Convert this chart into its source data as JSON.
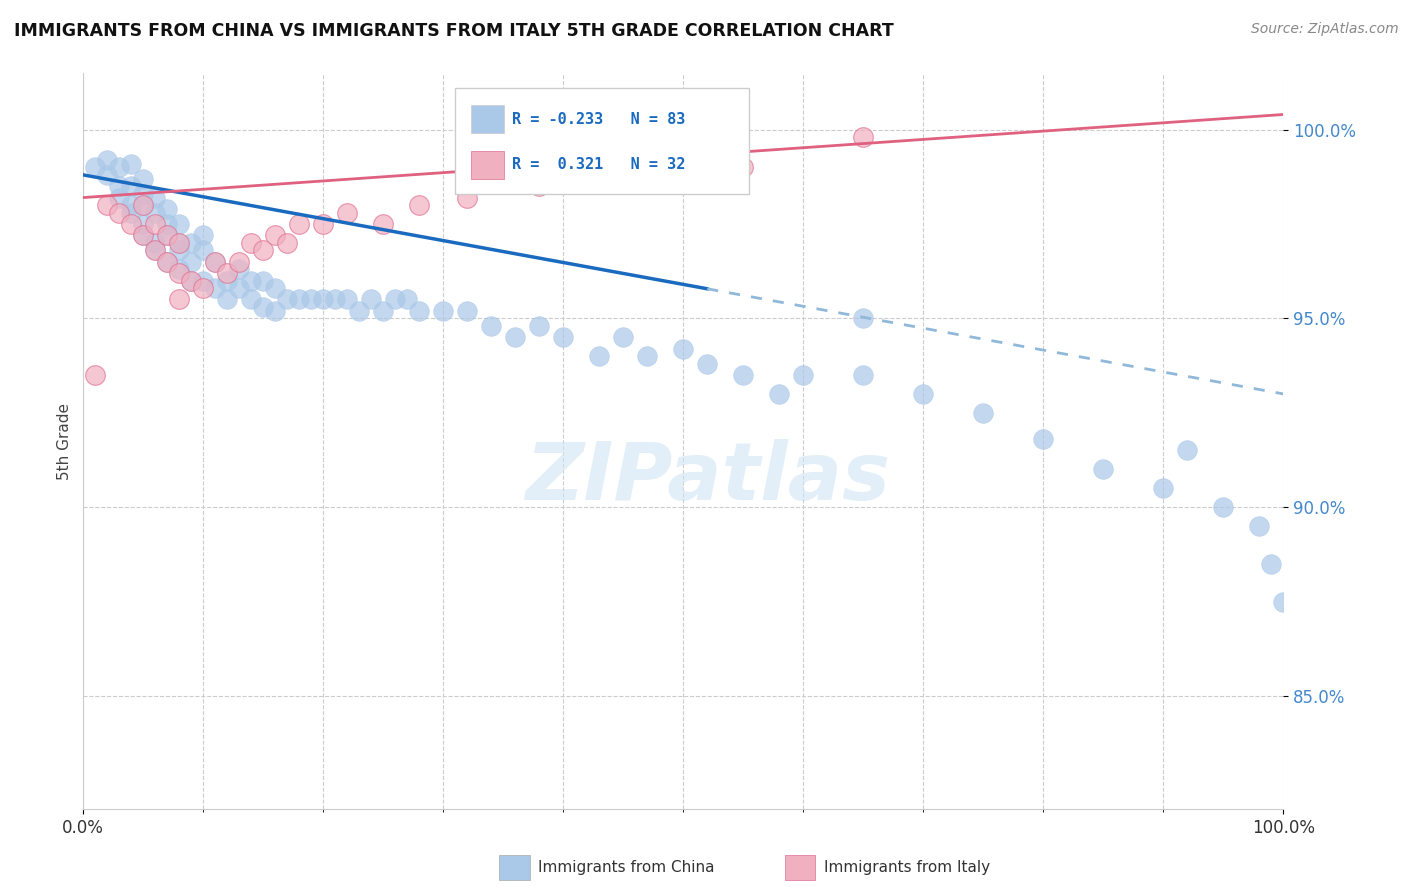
{
  "title": "IMMIGRANTS FROM CHINA VS IMMIGRANTS FROM ITALY 5TH GRADE CORRELATION CHART",
  "source": "Source: ZipAtlas.com",
  "ylabel": "5th Grade",
  "xlim": [
    0.0,
    100.0
  ],
  "ylim": [
    82.0,
    101.5
  ],
  "yticks": [
    85.0,
    90.0,
    95.0,
    100.0
  ],
  "ytick_labels": [
    "85.0%",
    "90.0%",
    "95.0%",
    "100.0%"
  ],
  "china_R": -0.233,
  "china_N": 83,
  "italy_R": 0.321,
  "italy_N": 32,
  "china_color": "#aac8e8",
  "china_edge_color": "#aac8e8",
  "china_line_color": "#1a6abf",
  "china_dash_color": "#90b8d8",
  "italy_color": "#f0b0c0",
  "italy_edge_color": "#e07090",
  "italy_line_color": "#e06080",
  "legend_china_label": "Immigrants from China",
  "legend_italy_label": "Immigrants from Italy",
  "watermark": "ZIPatlas",
  "china_line_x0": 0,
  "china_line_y0": 98.8,
  "china_line_x1": 100,
  "china_line_y1": 93.0,
  "china_solid_end": 52,
  "italy_line_x0": 0,
  "italy_line_y0": 98.2,
  "italy_line_x1": 100,
  "italy_line_y1": 100.4,
  "china_x": [
    1,
    2,
    2,
    3,
    3,
    3,
    4,
    4,
    4,
    4,
    5,
    5,
    5,
    5,
    5,
    6,
    6,
    6,
    6,
    7,
    7,
    7,
    7,
    8,
    8,
    8,
    8,
    9,
    9,
    9,
    10,
    10,
    10,
    11,
    11,
    12,
    12,
    13,
    13,
    14,
    14,
    15,
    15,
    16,
    16,
    17,
    18,
    19,
    20,
    21,
    22,
    23,
    24,
    25,
    26,
    27,
    28,
    30,
    32,
    34,
    36,
    38,
    40,
    43,
    45,
    47,
    50,
    52,
    55,
    58,
    60,
    65,
    70,
    75,
    80,
    85,
    90,
    92,
    95,
    98,
    99,
    100,
    65
  ],
  "china_y": [
    99.0,
    98.8,
    99.2,
    98.5,
    99.0,
    98.2,
    98.0,
    98.5,
    97.8,
    99.1,
    97.5,
    98.0,
    98.3,
    97.2,
    98.7,
    97.8,
    97.0,
    98.2,
    96.8,
    97.5,
    96.5,
    97.9,
    97.2,
    97.0,
    96.3,
    97.5,
    96.8,
    96.5,
    97.0,
    96.0,
    96.8,
    96.0,
    97.2,
    96.5,
    95.8,
    96.0,
    95.5,
    95.8,
    96.3,
    95.5,
    96.0,
    95.3,
    96.0,
    95.8,
    95.2,
    95.5,
    95.5,
    95.5,
    95.5,
    95.5,
    95.5,
    95.2,
    95.5,
    95.2,
    95.5,
    95.5,
    95.2,
    95.2,
    95.2,
    94.8,
    94.5,
    94.8,
    94.5,
    94.0,
    94.5,
    94.0,
    94.2,
    93.8,
    93.5,
    93.0,
    93.5,
    93.5,
    93.0,
    92.5,
    91.8,
    91.0,
    90.5,
    91.5,
    90.0,
    89.5,
    88.5,
    87.5,
    95.0
  ],
  "italy_x": [
    1,
    2,
    3,
    4,
    5,
    5,
    6,
    6,
    7,
    7,
    8,
    8,
    9,
    10,
    11,
    12,
    13,
    14,
    15,
    16,
    17,
    18,
    20,
    22,
    25,
    28,
    32,
    38,
    48,
    55,
    65,
    8
  ],
  "italy_y": [
    93.5,
    98.0,
    97.8,
    97.5,
    97.2,
    98.0,
    96.8,
    97.5,
    96.5,
    97.2,
    96.2,
    97.0,
    96.0,
    95.8,
    96.5,
    96.2,
    96.5,
    97.0,
    96.8,
    97.2,
    97.0,
    97.5,
    97.5,
    97.8,
    97.5,
    98.0,
    98.2,
    98.5,
    98.8,
    99.0,
    99.8,
    95.5
  ]
}
